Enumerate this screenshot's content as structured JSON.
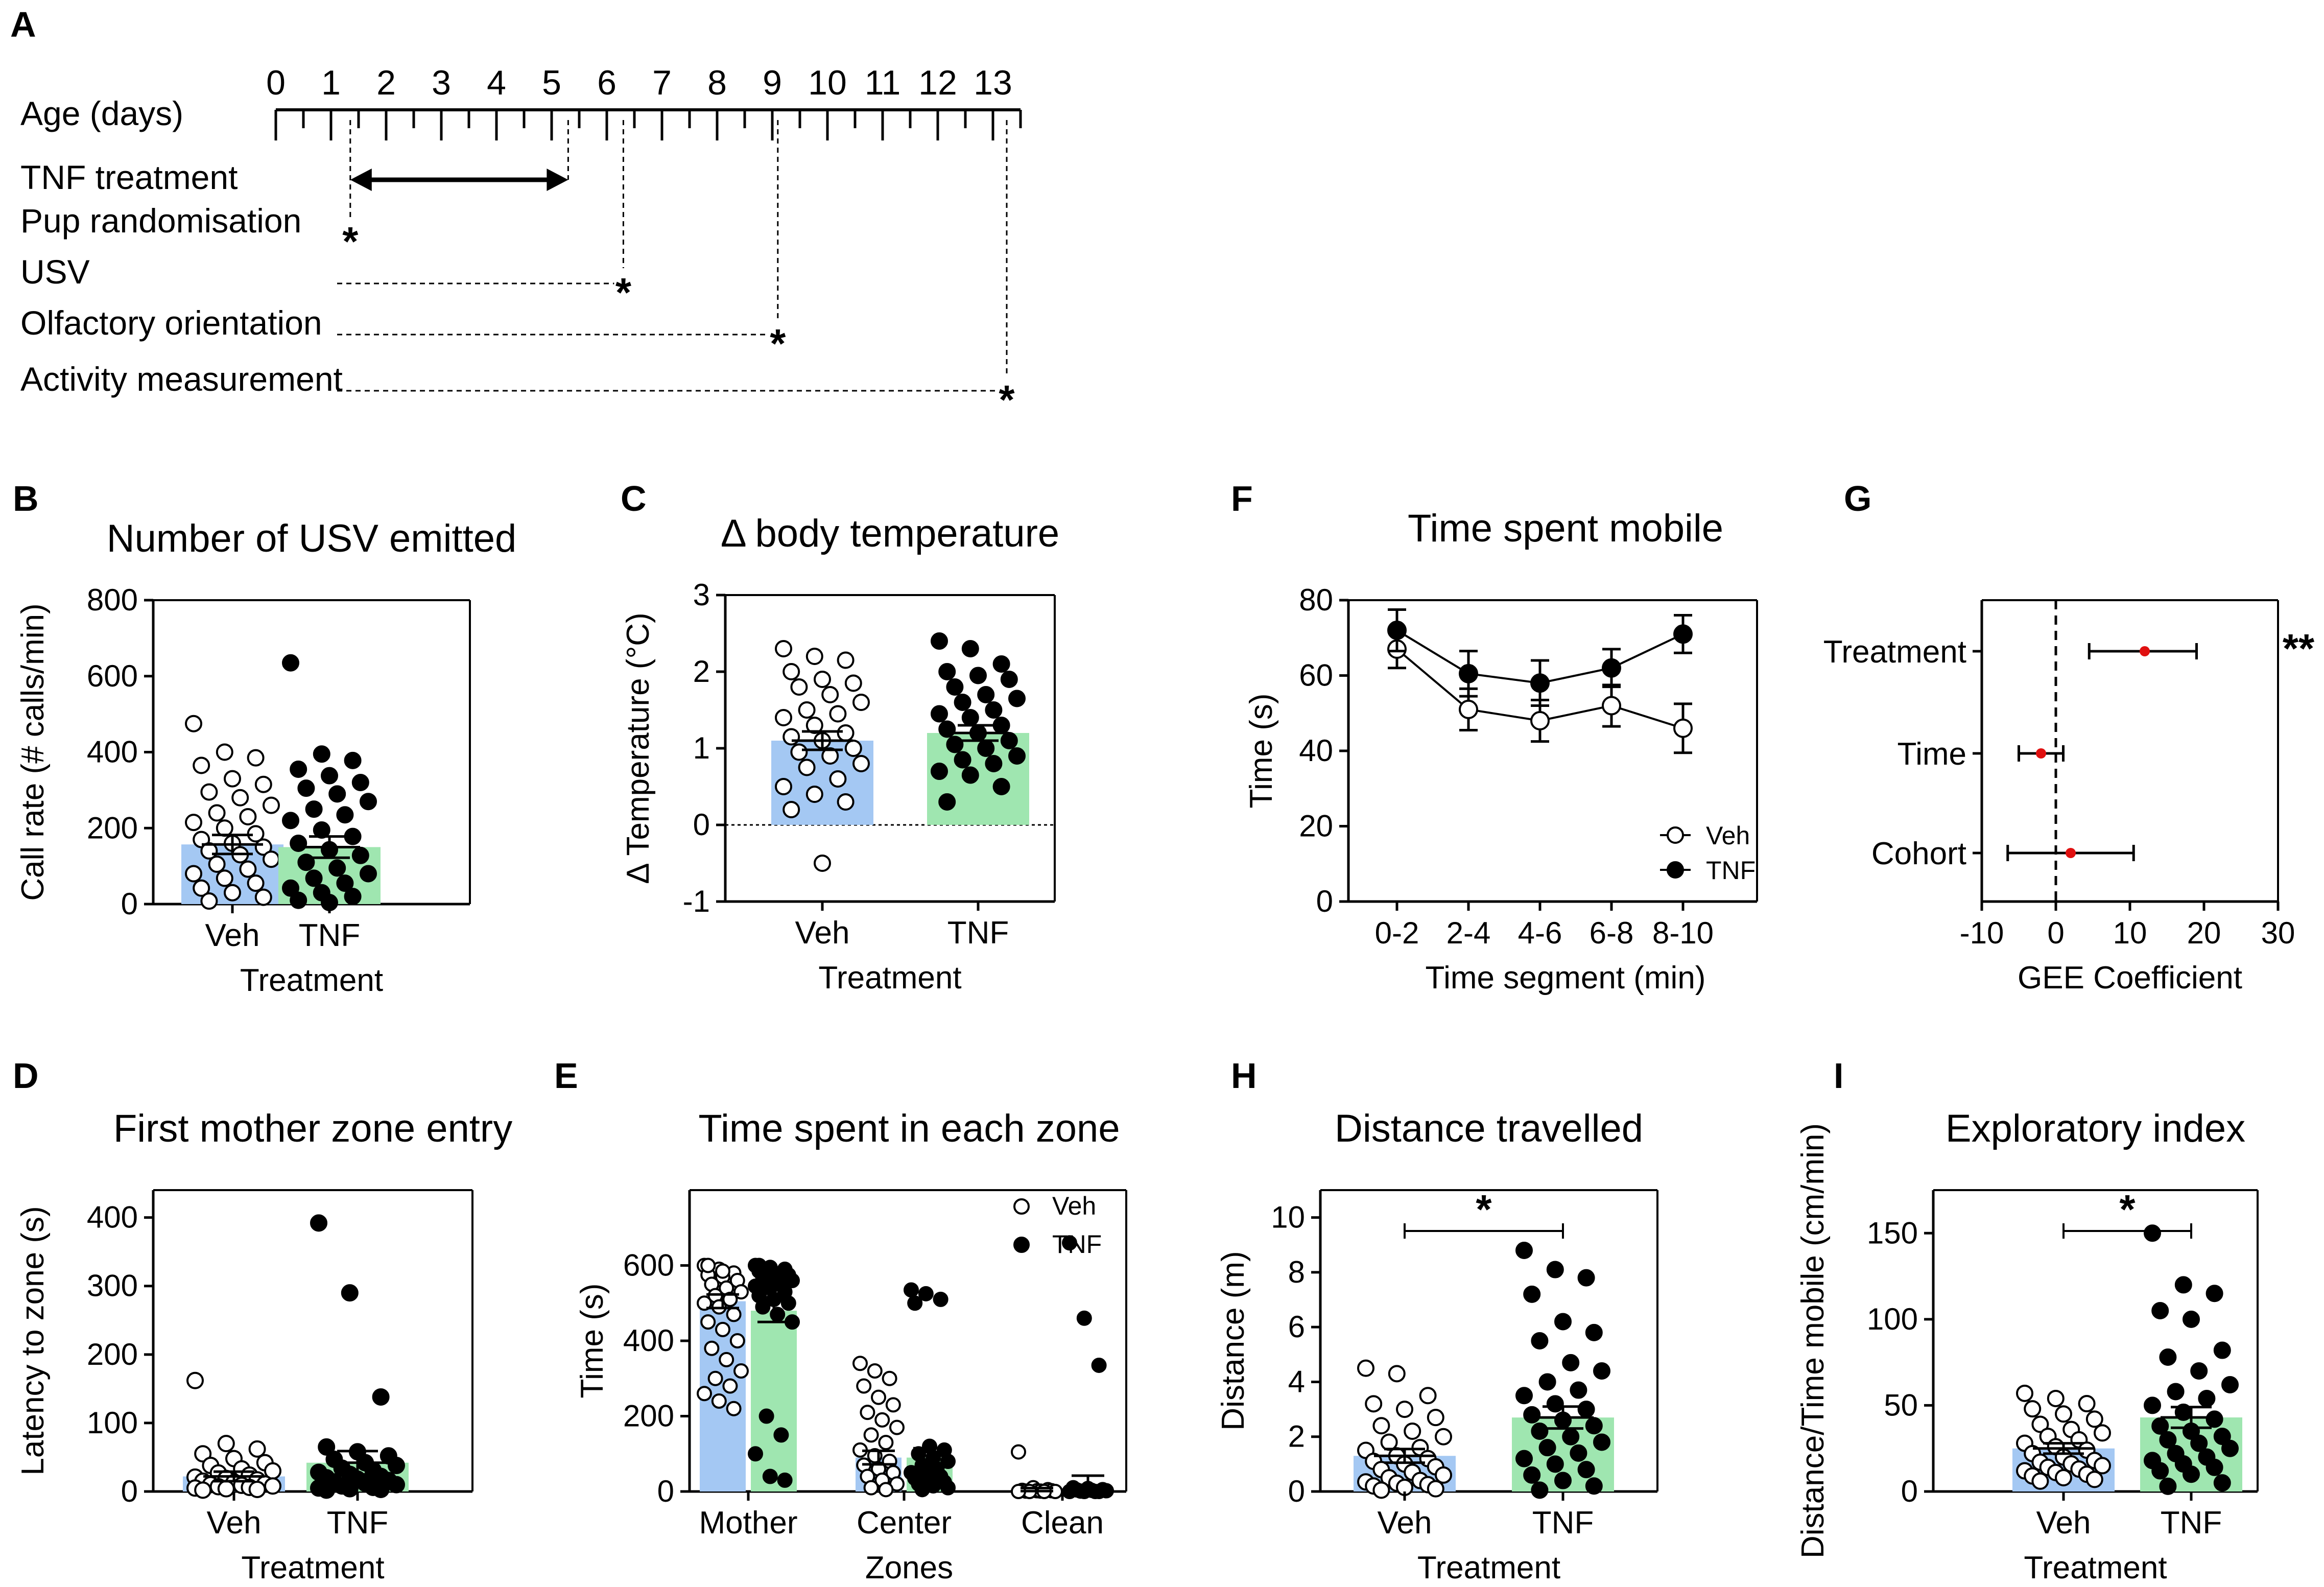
{
  "colors": {
    "veh": "#a4c8f3",
    "tnf": "#9fe6b0",
    "veh_point": "#ffffff",
    "tnf_point": "#000000",
    "gee_point": "#e01010"
  },
  "panel_labels": [
    "A",
    "B",
    "C",
    "D",
    "E",
    "F",
    "G",
    "H",
    "I"
  ],
  "timeline": {
    "panel": "A",
    "axis_label": "Age (days)",
    "day_labels": [
      "0",
      "1",
      "2",
      "3",
      "4",
      "5",
      "6",
      "7",
      "8",
      "9",
      "10",
      "11",
      "12",
      "13"
    ],
    "treatment_label": "TNF treatment",
    "treatment_start_day": 1.35,
    "treatment_end_day": 5.3,
    "events": [
      {
        "label": "Pup randomisation",
        "day": 1.35
      },
      {
        "label": "USV",
        "day": 6.3
      },
      {
        "label": "Olfactory orientation",
        "day": 9.1
      },
      {
        "label": "Activity measurement",
        "day": 13.25
      }
    ],
    "marker": "*"
  },
  "chart_data": [
    {
      "panel": "B",
      "type": "bar",
      "title": "Number of USV emitted",
      "xlabel": "Treatment",
      "ylabel": "Call rate (# calls/min)",
      "categories": [
        "Veh",
        "TNF"
      ],
      "ylim": [
        0,
        800
      ],
      "yticks": [
        "0",
        "200",
        "400",
        "600",
        "800"
      ],
      "series": [
        {
          "name": "Veh",
          "mean": 157,
          "sem": 25,
          "points": [
            475,
            400,
            385,
            365,
            330,
            315,
            295,
            280,
            260,
            240,
            230,
            215,
            200,
            185,
            170,
            160,
            150,
            140,
            130,
            118,
            105,
            92,
            80,
            68,
            55,
            42,
            30,
            18,
            8
          ]
        },
        {
          "name": "TNF",
          "mean": 150,
          "sem": 28,
          "points": [
            635,
            395,
            378,
            355,
            338,
            320,
            305,
            290,
            270,
            250,
            235,
            220,
            195,
            178,
            160,
            143,
            128,
            110,
            95,
            80,
            68,
            55,
            42,
            30,
            20,
            10,
            4
          ]
        }
      ]
    },
    {
      "panel": "C",
      "type": "bar",
      "title": "Δ body temperature",
      "xlabel": "Treatment",
      "ylabel": "Δ Temperature (°C)",
      "categories": [
        "Veh",
        "TNF"
      ],
      "ylim": [
        -1,
        3
      ],
      "yticks": [
        "-1",
        "0",
        "1",
        "2",
        "3"
      ],
      "series": [
        {
          "name": "Veh",
          "mean": 1.1,
          "sem": 0.12,
          "points": [
            2.3,
            2.2,
            2.15,
            2.0,
            1.9,
            1.85,
            1.8,
            1.7,
            1.6,
            1.5,
            1.45,
            1.4,
            1.3,
            1.2,
            1.15,
            1.1,
            1.0,
            0.95,
            0.9,
            0.8,
            0.75,
            0.6,
            0.5,
            0.4,
            0.3,
            0.2,
            -0.5
          ]
        },
        {
          "name": "TNF",
          "mean": 1.2,
          "sem": 0.1,
          "points": [
            2.4,
            2.3,
            2.1,
            2.0,
            1.95,
            1.9,
            1.8,
            1.7,
            1.65,
            1.6,
            1.5,
            1.45,
            1.4,
            1.3,
            1.25,
            1.2,
            1.1,
            1.05,
            1.0,
            0.9,
            0.85,
            0.8,
            0.7,
            0.65,
            0.5,
            0.3
          ]
        }
      ]
    },
    {
      "panel": "F",
      "type": "line",
      "title": "Time spent mobile",
      "xlabel": "Time segment (min)",
      "ylabel": "Time (s)",
      "categories": [
        "0-2",
        "2-4",
        "4-6",
        "6-8",
        "8-10"
      ],
      "ylim": [
        0,
        80
      ],
      "yticks": [
        "0",
        "20",
        "40",
        "60",
        "80"
      ],
      "series": [
        {
          "name": "Veh",
          "values": [
            67,
            51,
            48,
            52,
            46
          ],
          "sem": [
            5,
            5.5,
            5.5,
            5.5,
            6.5
          ]
        },
        {
          "name": "TNF",
          "values": [
            72,
            60.5,
            58,
            62,
            71
          ],
          "sem": [
            5.5,
            6,
            6,
            5,
            5
          ]
        }
      ]
    },
    {
      "panel": "G",
      "type": "scatter",
      "title": "",
      "xlabel": "GEE Coefficient",
      "ylabel": "",
      "xlim": [
        -10,
        30
      ],
      "xticks": [
        "-10",
        "0",
        "10",
        "20",
        "30"
      ],
      "rows": [
        {
          "label": "Treatment",
          "coef": 12,
          "ci": [
            4.5,
            19
          ],
          "significance": "**"
        },
        {
          "label": "Time",
          "coef": -2,
          "ci": [
            -5,
            1
          ],
          "significance": ""
        },
        {
          "label": "Cohort",
          "coef": 2,
          "ci": [
            -6.5,
            10.5
          ],
          "significance": ""
        }
      ]
    },
    {
      "panel": "D",
      "type": "bar",
      "title": "First mother zone entry",
      "xlabel": "Treatment",
      "ylabel": "Latency to zone (s)",
      "categories": [
        "Veh",
        "TNF"
      ],
      "ylim": [
        0,
        440
      ],
      "yticks": [
        "0",
        "100",
        "200",
        "300",
        "400"
      ],
      "series": [
        {
          "name": "Veh",
          "mean": 22,
          "sem": 7,
          "points": [
            162,
            70,
            62,
            55,
            48,
            42,
            38,
            33,
            30,
            27,
            24,
            21,
            19,
            17,
            15,
            13,
            11,
            10,
            9,
            8,
            7,
            6,
            5,
            4,
            3,
            2
          ]
        },
        {
          "name": "TNF",
          "mean": 42,
          "sem": 17,
          "points": [
            392,
            290,
            138,
            65,
            58,
            52,
            47,
            42,
            38,
            34,
            31,
            28,
            25,
            22,
            20,
            18,
            16,
            14,
            12,
            10,
            8,
            6,
            5,
            4,
            3,
            2
          ]
        }
      ]
    },
    {
      "panel": "E",
      "type": "bar",
      "title": "Time spent in each zone",
      "xlabel": "Zones",
      "ylabel": "Time (s)",
      "categories": [
        "Mother",
        "Center",
        "Clean"
      ],
      "ylim": [
        0,
        800
      ],
      "yticks": [
        "0",
        "200",
        "400",
        "600"
      ],
      "series": [
        {
          "name": "Veh",
          "means": [
            505,
            90,
            5
          ],
          "sems": [
            18,
            18,
            4
          ],
          "points": [
            [
              600,
              590,
              580,
              575,
              570,
              560,
              550,
              540,
              530,
              520,
              510,
              500,
              490,
              470,
              450,
              430,
              400,
              380,
              350,
              320,
              300,
              280,
              260,
              240,
              220,
              600,
              585
            ],
            [
              340,
              320,
              300,
              280,
              250,
              230,
              210,
              190,
              170,
              150,
              130,
              110,
              95,
              80,
              70,
              60,
              50,
              40,
              30,
              20,
              10,
              5
            ],
            [
              105,
              10,
              5,
              3,
              2,
              2,
              1,
              1,
              0,
              0,
              0,
              0
            ]
          ]
        },
        {
          "name": "TNF",
          "means": [
            480,
            90,
            12
          ],
          "sems": [
            30,
            25,
            30
          ],
          "points": [
            [
              600,
              595,
              590,
              585,
              580,
              575,
              570,
              565,
              560,
              555,
              550,
              545,
              540,
              530,
              520,
              510,
              500,
              490,
              470,
              450,
              200,
              150,
              100,
              40,
              30,
              600
            ],
            [
              535,
              525,
              510,
              500,
              120,
              110,
              100,
              90,
              80,
              70,
              60,
              50,
              45,
              40,
              35,
              30,
              25,
              20,
              15,
              10,
              5
            ],
            [
              660,
              460,
              335,
              10,
              8,
              5,
              4,
              3,
              2,
              1,
              0,
              0,
              0,
              0
            ]
          ]
        }
      ],
      "legend": [
        "Veh",
        "TNF"
      ]
    },
    {
      "panel": "H",
      "type": "bar",
      "title": "Distance travelled",
      "xlabel": "Treatment",
      "ylabel": "Distance (m)",
      "categories": [
        "Veh",
        "TNF"
      ],
      "ylim": [
        0,
        11
      ],
      "yticks": [
        "0",
        "2",
        "4",
        "6",
        "8",
        "10"
      ],
      "series": [
        {
          "name": "Veh",
          "mean": 1.3,
          "sem": 0.25,
          "points": [
            4.5,
            4.3,
            3.5,
            3.2,
            3.0,
            2.7,
            2.4,
            2.2,
            2.0,
            1.8,
            1.6,
            1.5,
            1.3,
            1.2,
            1.1,
            1.0,
            0.9,
            0.8,
            0.7,
            0.6,
            0.5,
            0.4,
            0.35,
            0.3,
            0.25,
            0.2,
            0.15,
            0.1,
            0.05
          ]
        },
        {
          "name": "TNF",
          "mean": 2.7,
          "sem": 0.4,
          "points": [
            8.8,
            8.1,
            7.8,
            7.2,
            6.2,
            5.8,
            5.5,
            4.7,
            4.4,
            4.0,
            3.7,
            3.5,
            3.2,
            3.0,
            2.8,
            2.6,
            2.4,
            2.2,
            2.0,
            1.8,
            1.6,
            1.4,
            1.2,
            1.0,
            0.8,
            0.6,
            0.4,
            0.2,
            0.05
          ]
        }
      ],
      "significance": "*"
    },
    {
      "panel": "I",
      "type": "bar",
      "title": "Exploratory index",
      "xlabel": "Treatment",
      "ylabel": "Distance/Time mobile (cm/min)",
      "categories": [
        "Veh",
        "TNF"
      ],
      "ylim": [
        0,
        175
      ],
      "yticks": [
        "0",
        "50",
        "100",
        "150"
      ],
      "series": [
        {
          "name": "Veh",
          "mean": 25,
          "sem": 3,
          "points": [
            57,
            54,
            51,
            48,
            45,
            42,
            39,
            36,
            34,
            32,
            30,
            28,
            26,
            24,
            22,
            20,
            18,
            17,
            16,
            15,
            14,
            13,
            12,
            11,
            10,
            9,
            8,
            7,
            6
          ]
        },
        {
          "name": "TNF",
          "mean": 43,
          "sem": 6,
          "points": [
            150,
            120,
            115,
            105,
            100,
            82,
            78,
            70,
            62,
            58,
            54,
            50,
            46,
            42,
            38,
            35,
            32,
            30,
            28,
            25,
            22,
            20,
            18,
            16,
            14,
            12,
            10,
            5,
            3
          ]
        }
      ],
      "significance": "*"
    }
  ]
}
